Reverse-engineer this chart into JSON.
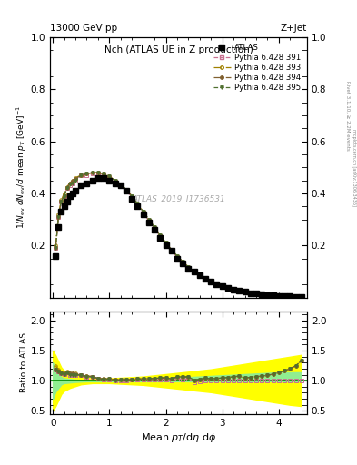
{
  "title_top": "13000 GeV pp",
  "title_right": "Z+Jet",
  "plot_title": "Nch (ATLAS UE in Z production)",
  "watermark": "ATLAS_2019_I1736531",
  "right_label": "Rivet 3.1.10, ≥ 2.2M events",
  "right_label2": "mcplots.cern.ch [arXiv:1306.3436]",
  "ylabel_ratio": "Ratio to ATLAS",
  "xlabel": "Mean p_{T}/dη dφ",
  "atlas_x": [
    0.05,
    0.1,
    0.15,
    0.2,
    0.25,
    0.3,
    0.35,
    0.4,
    0.5,
    0.6,
    0.7,
    0.8,
    0.9,
    1.0,
    1.1,
    1.2,
    1.3,
    1.4,
    1.5,
    1.6,
    1.7,
    1.8,
    1.9,
    2.0,
    2.1,
    2.2,
    2.3,
    2.4,
    2.5,
    2.6,
    2.7,
    2.8,
    2.9,
    3.0,
    3.1,
    3.2,
    3.3,
    3.4,
    3.5,
    3.6,
    3.7,
    3.8,
    3.9,
    4.0,
    4.1,
    4.2,
    4.3,
    4.4
  ],
  "atlas_y": [
    0.16,
    0.27,
    0.33,
    0.35,
    0.37,
    0.39,
    0.4,
    0.41,
    0.43,
    0.44,
    0.45,
    0.46,
    0.46,
    0.45,
    0.44,
    0.43,
    0.41,
    0.38,
    0.35,
    0.32,
    0.29,
    0.26,
    0.23,
    0.2,
    0.18,
    0.15,
    0.13,
    0.11,
    0.1,
    0.085,
    0.072,
    0.062,
    0.052,
    0.044,
    0.037,
    0.031,
    0.026,
    0.022,
    0.018,
    0.015,
    0.013,
    0.011,
    0.009,
    0.007,
    0.006,
    0.005,
    0.004,
    0.003
  ],
  "atlas_yerr": [
    0.008,
    0.01,
    0.01,
    0.01,
    0.01,
    0.01,
    0.01,
    0.01,
    0.01,
    0.01,
    0.01,
    0.01,
    0.01,
    0.01,
    0.01,
    0.01,
    0.01,
    0.008,
    0.008,
    0.007,
    0.006,
    0.005,
    0.005,
    0.004,
    0.004,
    0.003,
    0.003,
    0.002,
    0.002,
    0.002,
    0.002,
    0.002,
    0.001,
    0.001,
    0.001,
    0.001,
    0.001,
    0.001,
    0.001,
    0.001,
    0.001,
    0.001,
    0.001,
    0.001,
    0.001,
    0.001,
    0.001,
    0.001
  ],
  "mc_x": [
    0.05,
    0.1,
    0.15,
    0.2,
    0.25,
    0.3,
    0.35,
    0.4,
    0.5,
    0.6,
    0.7,
    0.8,
    0.9,
    1.0,
    1.1,
    1.2,
    1.3,
    1.4,
    1.5,
    1.6,
    1.7,
    1.8,
    1.9,
    2.0,
    2.1,
    2.2,
    2.3,
    2.4,
    2.5,
    2.6,
    2.7,
    2.8,
    2.9,
    3.0,
    3.1,
    3.2,
    3.3,
    3.4,
    3.5,
    3.6,
    3.7,
    3.8,
    3.9,
    4.0,
    4.1,
    4.2,
    4.3,
    4.4
  ],
  "py391_y": [
    0.19,
    0.31,
    0.37,
    0.39,
    0.42,
    0.43,
    0.44,
    0.45,
    0.47,
    0.47,
    0.475,
    0.475,
    0.47,
    0.46,
    0.445,
    0.43,
    0.41,
    0.385,
    0.355,
    0.325,
    0.295,
    0.265,
    0.235,
    0.205,
    0.18,
    0.155,
    0.133,
    0.114,
    0.098,
    0.084,
    0.072,
    0.062,
    0.052,
    0.044,
    0.037,
    0.031,
    0.026,
    0.022,
    0.018,
    0.015,
    0.013,
    0.011,
    0.009,
    0.007,
    0.006,
    0.005,
    0.004,
    0.003
  ],
  "py393_y": [
    0.2,
    0.32,
    0.375,
    0.4,
    0.425,
    0.44,
    0.45,
    0.46,
    0.47,
    0.475,
    0.48,
    0.48,
    0.475,
    0.465,
    0.45,
    0.435,
    0.415,
    0.39,
    0.36,
    0.33,
    0.3,
    0.27,
    0.24,
    0.21,
    0.185,
    0.16,
    0.138,
    0.118,
    0.101,
    0.087,
    0.075,
    0.064,
    0.054,
    0.046,
    0.039,
    0.033,
    0.028,
    0.023,
    0.019,
    0.016,
    0.014,
    0.012,
    0.01,
    0.008,
    0.007,
    0.006,
    0.005,
    0.004
  ],
  "py394_y": [
    0.19,
    0.31,
    0.37,
    0.39,
    0.42,
    0.44,
    0.45,
    0.455,
    0.47,
    0.475,
    0.48,
    0.48,
    0.475,
    0.465,
    0.45,
    0.435,
    0.415,
    0.39,
    0.36,
    0.33,
    0.3,
    0.27,
    0.24,
    0.21,
    0.185,
    0.16,
    0.138,
    0.118,
    0.101,
    0.087,
    0.075,
    0.064,
    0.054,
    0.046,
    0.039,
    0.033,
    0.028,
    0.023,
    0.019,
    0.016,
    0.014,
    0.012,
    0.01,
    0.008,
    0.007,
    0.006,
    0.005,
    0.004
  ],
  "py395_y": [
    0.19,
    0.31,
    0.37,
    0.39,
    0.42,
    0.435,
    0.44,
    0.45,
    0.47,
    0.475,
    0.48,
    0.48,
    0.475,
    0.465,
    0.45,
    0.435,
    0.415,
    0.39,
    0.36,
    0.33,
    0.3,
    0.27,
    0.24,
    0.21,
    0.185,
    0.16,
    0.138,
    0.118,
    0.101,
    0.087,
    0.075,
    0.064,
    0.054,
    0.046,
    0.039,
    0.033,
    0.028,
    0.023,
    0.019,
    0.016,
    0.014,
    0.012,
    0.01,
    0.008,
    0.007,
    0.006,
    0.005,
    0.004
  ],
  "color_391": "#c87090",
  "color_393": "#a08000",
  "color_394": "#806030",
  "color_395": "#507030",
  "band_x": [
    0.0,
    0.05,
    0.1,
    0.15,
    0.2,
    0.3,
    0.4,
    0.5,
    0.6,
    0.7,
    0.8,
    0.9,
    1.0,
    1.2,
    1.4,
    1.6,
    1.8,
    2.0,
    2.2,
    2.4,
    2.6,
    2.8,
    3.0,
    3.2,
    3.4,
    3.6,
    3.8,
    4.0,
    4.2,
    4.4
  ],
  "green_low": [
    0.7,
    0.82,
    0.88,
    0.94,
    0.96,
    0.97,
    0.98,
    0.985,
    0.99,
    0.99,
    0.99,
    0.99,
    0.99,
    0.99,
    0.99,
    0.99,
    0.99,
    0.99,
    0.99,
    0.99,
    0.99,
    0.99,
    0.99,
    0.99,
    0.99,
    0.99,
    0.99,
    0.99,
    0.99,
    0.99
  ],
  "green_high": [
    1.3,
    1.18,
    1.12,
    1.06,
    1.04,
    1.03,
    1.02,
    1.015,
    1.01,
    1.01,
    1.01,
    1.01,
    1.01,
    1.01,
    1.01,
    1.02,
    1.03,
    1.04,
    1.05,
    1.06,
    1.07,
    1.08,
    1.09,
    1.1,
    1.11,
    1.12,
    1.13,
    1.14,
    1.14,
    1.14
  ],
  "yellow_low": [
    0.5,
    0.58,
    0.68,
    0.78,
    0.83,
    0.88,
    0.91,
    0.94,
    0.95,
    0.96,
    0.96,
    0.96,
    0.96,
    0.95,
    0.94,
    0.93,
    0.91,
    0.89,
    0.87,
    0.85,
    0.83,
    0.81,
    0.78,
    0.75,
    0.72,
    0.69,
    0.66,
    0.63,
    0.6,
    0.58
  ],
  "yellow_high": [
    1.5,
    1.42,
    1.32,
    1.22,
    1.17,
    1.12,
    1.09,
    1.06,
    1.05,
    1.04,
    1.04,
    1.04,
    1.04,
    1.05,
    1.06,
    1.07,
    1.09,
    1.11,
    1.13,
    1.15,
    1.17,
    1.19,
    1.22,
    1.25,
    1.28,
    1.31,
    1.34,
    1.37,
    1.4,
    1.43
  ],
  "ratio_391": [
    1.19,
    1.15,
    1.12,
    1.11,
    1.14,
    1.1,
    1.1,
    1.1,
    1.09,
    1.07,
    1.06,
    1.03,
    1.02,
    1.02,
    1.01,
    1.0,
    1.0,
    1.015,
    1.014,
    1.016,
    1.017,
    1.019,
    1.022,
    1.025,
    1.0,
    1.033,
    1.023,
    1.032,
    0.98,
    0.988,
    1.0,
    1.0,
    1.0,
    1.0,
    1.0,
    1.0,
    1.0,
    1.0,
    1.0,
    1.0,
    1.0,
    1.0,
    1.0,
    1.0,
    1.0,
    1.0,
    1.0,
    1.0
  ],
  "ratio_393": [
    1.25,
    1.19,
    1.14,
    1.14,
    1.15,
    1.13,
    1.13,
    1.12,
    1.09,
    1.08,
    1.07,
    1.04,
    1.03,
    1.03,
    1.02,
    1.012,
    1.012,
    1.026,
    1.029,
    1.031,
    1.034,
    1.038,
    1.046,
    1.05,
    1.028,
    1.067,
    1.062,
    1.065,
    1.01,
    1.024,
    1.042,
    1.032,
    1.038,
    1.045,
    1.054,
    1.065,
    1.077,
    1.045,
    1.056,
    1.067,
    1.077,
    1.091,
    1.11,
    1.14,
    1.167,
    1.2,
    1.25,
    1.33
  ],
  "ratio_394": [
    1.19,
    1.15,
    1.12,
    1.11,
    1.14,
    1.13,
    1.13,
    1.11,
    1.09,
    1.08,
    1.07,
    1.04,
    1.03,
    1.03,
    1.02,
    1.012,
    1.012,
    1.026,
    1.029,
    1.031,
    1.034,
    1.038,
    1.046,
    1.05,
    1.028,
    1.067,
    1.062,
    1.065,
    1.01,
    1.024,
    1.042,
    1.032,
    1.038,
    1.045,
    1.054,
    1.065,
    1.077,
    1.045,
    1.056,
    1.067,
    1.077,
    1.091,
    1.11,
    1.14,
    1.167,
    1.2,
    1.25,
    1.33
  ],
  "ratio_395": [
    1.19,
    1.15,
    1.12,
    1.11,
    1.14,
    1.1,
    1.1,
    1.1,
    1.09,
    1.07,
    1.06,
    1.04,
    1.02,
    1.03,
    1.01,
    1.012,
    1.012,
    1.026,
    1.029,
    1.031,
    1.034,
    1.038,
    1.046,
    1.05,
    1.028,
    1.067,
    1.062,
    1.065,
    1.01,
    1.024,
    1.042,
    1.032,
    1.038,
    1.045,
    1.054,
    1.065,
    1.077,
    1.045,
    1.056,
    1.067,
    1.077,
    1.091,
    1.11,
    1.14,
    1.167,
    1.2,
    1.25,
    1.33
  ],
  "xlim": [
    -0.05,
    4.5
  ],
  "ylim_main": [
    0.0,
    1.0
  ],
  "ylim_ratio": [
    0.45,
    2.15
  ],
  "yticks_main": [
    0.2,
    0.4,
    0.6,
    0.8,
    1.0
  ],
  "yticks_ratio": [
    0.5,
    1.0,
    1.5,
    2.0
  ],
  "xticks": [
    0.0,
    1.0,
    2.0,
    3.0,
    4.0
  ]
}
